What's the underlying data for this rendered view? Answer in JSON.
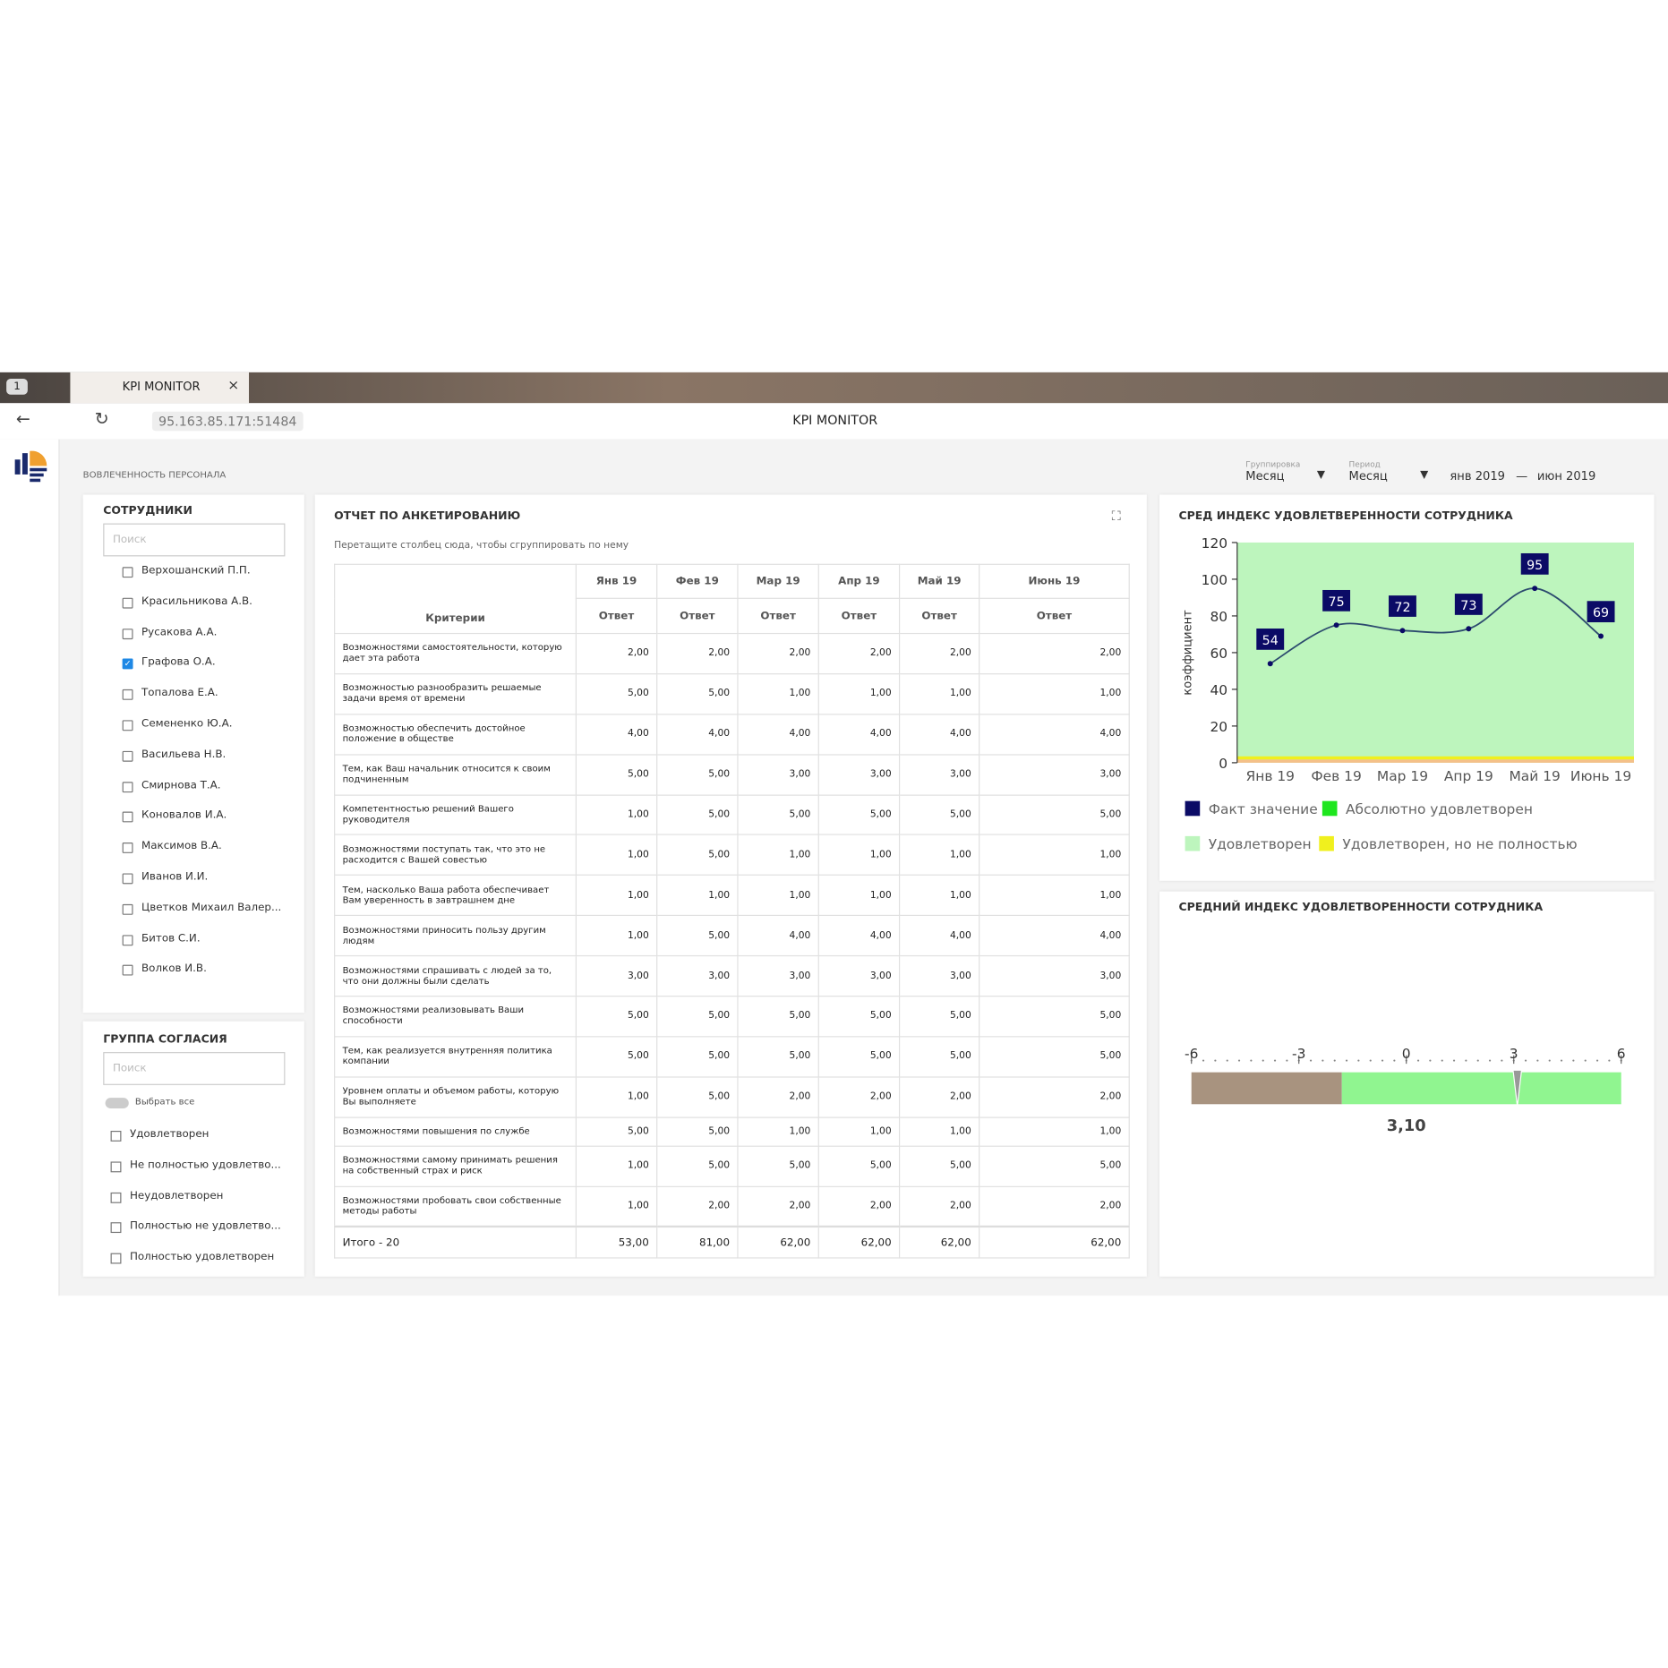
{
  "browser": {
    "tab_count": "1",
    "tab_title": "KPI MONITOR",
    "url": "95.163.85.171:51484",
    "page_title": "KPI MONITOR"
  },
  "header": {
    "section": "ВОВЛЕЧЕННОСТЬ ПЕРСОНАЛА",
    "grouping_label": "Группировка",
    "grouping_value": "Месяц",
    "period_label": "Период",
    "period_value": "Месяц",
    "date_from": "янв 2019",
    "date_separator": "—",
    "date_to": "июн 2019"
  },
  "employees": {
    "title": "СОТРУДНИКИ",
    "search_placeholder": "Поиск",
    "items": [
      {
        "name": "Верхошанский П.П.",
        "checked": false
      },
      {
        "name": "Красильникова А.В.",
        "checked": false
      },
      {
        "name": "Русакова А.А.",
        "checked": false
      },
      {
        "name": "Графова О.А.",
        "checked": true
      },
      {
        "name": "Топалова Е.А.",
        "checked": false
      },
      {
        "name": "Семененко Ю.А.",
        "checked": false
      },
      {
        "name": "Васильева Н.В.",
        "checked": false
      },
      {
        "name": "Смирнова Т.А.",
        "checked": false
      },
      {
        "name": "Коновалов И.А.",
        "checked": false
      },
      {
        "name": "Максимов В.А.",
        "checked": false
      },
      {
        "name": "Иванов И.И.",
        "checked": false
      },
      {
        "name": "Цветков Михаил Валер...",
        "checked": false
      },
      {
        "name": "Битов С.И.",
        "checked": false
      },
      {
        "name": "Волков И.В.",
        "checked": false
      }
    ]
  },
  "consent_group": {
    "title": "ГРУППА СОГЛАСИЯ",
    "search_placeholder": "Поиск",
    "select_all": "Выбрать все",
    "items": [
      "Удовлетворен",
      "Не полностью удовлетво...",
      "Неудовлетворен",
      "Полностью не удовлетво...",
      "Полностью удовлетворен"
    ]
  },
  "report": {
    "title": "ОТЧЕТ ПО АНКЕТИРОВАНИЮ",
    "group_hint": "Перетащите столбец сюда, чтобы сгруппировать по нему",
    "criteria_header": "Критерии",
    "sub_header": "Ответ",
    "months": [
      "Янв 19",
      "Фев 19",
      "Мар 19",
      "Апр 19",
      "Май 19",
      "Июнь 19"
    ],
    "rows": [
      {
        "criterion": "Возможностями самостоятельности, которую дает эта работа",
        "values": [
          "2,00",
          "2,00",
          "2,00",
          "2,00",
          "2,00",
          "2,00"
        ]
      },
      {
        "criterion": "Возможностью разнообразить решаемые задачи время от времени",
        "values": [
          "5,00",
          "5,00",
          "1,00",
          "1,00",
          "1,00",
          "1,00"
        ]
      },
      {
        "criterion": "Возможностью обеспечить достойное положение в обществе",
        "values": [
          "4,00",
          "4,00",
          "4,00",
          "4,00",
          "4,00",
          "4,00"
        ]
      },
      {
        "criterion": "Тем, как Ваш начальник относится к своим подчиненным",
        "values": [
          "5,00",
          "5,00",
          "3,00",
          "3,00",
          "3,00",
          "3,00"
        ]
      },
      {
        "criterion": "Компетентностью решений Вашего руководителя",
        "values": [
          "1,00",
          "5,00",
          "5,00",
          "5,00",
          "5,00",
          "5,00"
        ]
      },
      {
        "criterion": "Возможностями поступать так, что это не расходится с Вашей совестью",
        "values": [
          "1,00",
          "5,00",
          "1,00",
          "1,00",
          "1,00",
          "1,00"
        ]
      },
      {
        "criterion": "Тем, насколько Ваша работа обеспечивает Вам уверенность в завтрашнем дне",
        "values": [
          "1,00",
          "1,00",
          "1,00",
          "1,00",
          "1,00",
          "1,00"
        ]
      },
      {
        "criterion": "Возможностями приносить пользу другим людям",
        "values": [
          "1,00",
          "5,00",
          "4,00",
          "4,00",
          "4,00",
          "4,00"
        ]
      },
      {
        "criterion": "Возможностями спрашивать с людей за то, что они должны были сделать",
        "values": [
          "3,00",
          "3,00",
          "3,00",
          "3,00",
          "3,00",
          "3,00"
        ]
      },
      {
        "criterion": "Возможностями реализовывать Ваши способности",
        "values": [
          "5,00",
          "5,00",
          "5,00",
          "5,00",
          "5,00",
          "5,00"
        ]
      },
      {
        "criterion": "Тем, как реализуется внутренняя политика компании",
        "values": [
          "5,00",
          "5,00",
          "5,00",
          "5,00",
          "5,00",
          "5,00"
        ]
      },
      {
        "criterion": "Уровнем оплаты и объемом работы, которую Вы выполняете",
        "values": [
          "1,00",
          "5,00",
          "2,00",
          "2,00",
          "2,00",
          "2,00"
        ]
      },
      {
        "criterion": "Возможностями повышения по службе",
        "values": [
          "5,00",
          "5,00",
          "1,00",
          "1,00",
          "1,00",
          "1,00"
        ]
      },
      {
        "criterion": "Возможностями самому принимать решения на собственный страх и риск",
        "values": [
          "1,00",
          "5,00",
          "5,00",
          "5,00",
          "5,00",
          "5,00"
        ]
      },
      {
        "criterion": "Возможностями пробовать свои собственные методы работы",
        "values": [
          "1,00",
          "2,00",
          "2,00",
          "2,00",
          "2,00",
          "2,00"
        ]
      }
    ],
    "total": {
      "label": "Итого - 20",
      "values": [
        "53,00",
        "81,00",
        "62,00",
        "62,00",
        "62,00",
        "62,00"
      ]
    }
  },
  "chart": {
    "type": "line",
    "title": "СРЕД ИНДЕКС УДОВЛЕТВЕРЕННОСТИ СОТРУДНИКА",
    "y_label": "коэффициент",
    "categories": [
      "Янв 19",
      "Фев 19",
      "Мар 19",
      "Апр 19",
      "Май 19",
      "Июнь 19"
    ],
    "ylim": [
      0,
      120
    ],
    "yticks": [
      0,
      20,
      40,
      60,
      80,
      100,
      120
    ],
    "series": [
      {
        "name": "Факт значение",
        "color": "#0b0b66",
        "values": [
          54,
          75,
          72,
          73,
          95,
          69
        ]
      }
    ],
    "bands": [
      {
        "name": "Абсолютно удовлетворен",
        "color": "#1ee61e"
      },
      {
        "name": "Удовлетворен",
        "color": "#bdf5bd"
      },
      {
        "name": "Удовлетворен, но не полностью",
        "color": "#f0f01e"
      }
    ]
  },
  "gauge": {
    "title": "СРЕДНИЙ ИНДЕКС УДОВЛЕТВОРЕННОСТИ СОТРУДНИКА",
    "min": -6,
    "max": 6,
    "ticks": [
      -6,
      -3,
      0,
      3,
      6
    ],
    "value": 3.1,
    "value_label": "3,10",
    "segments": [
      {
        "from": -6,
        "to": -1.8,
        "color": "#a8937f"
      },
      {
        "from": -1.8,
        "to": 6,
        "color": "#90f590"
      }
    ]
  }
}
